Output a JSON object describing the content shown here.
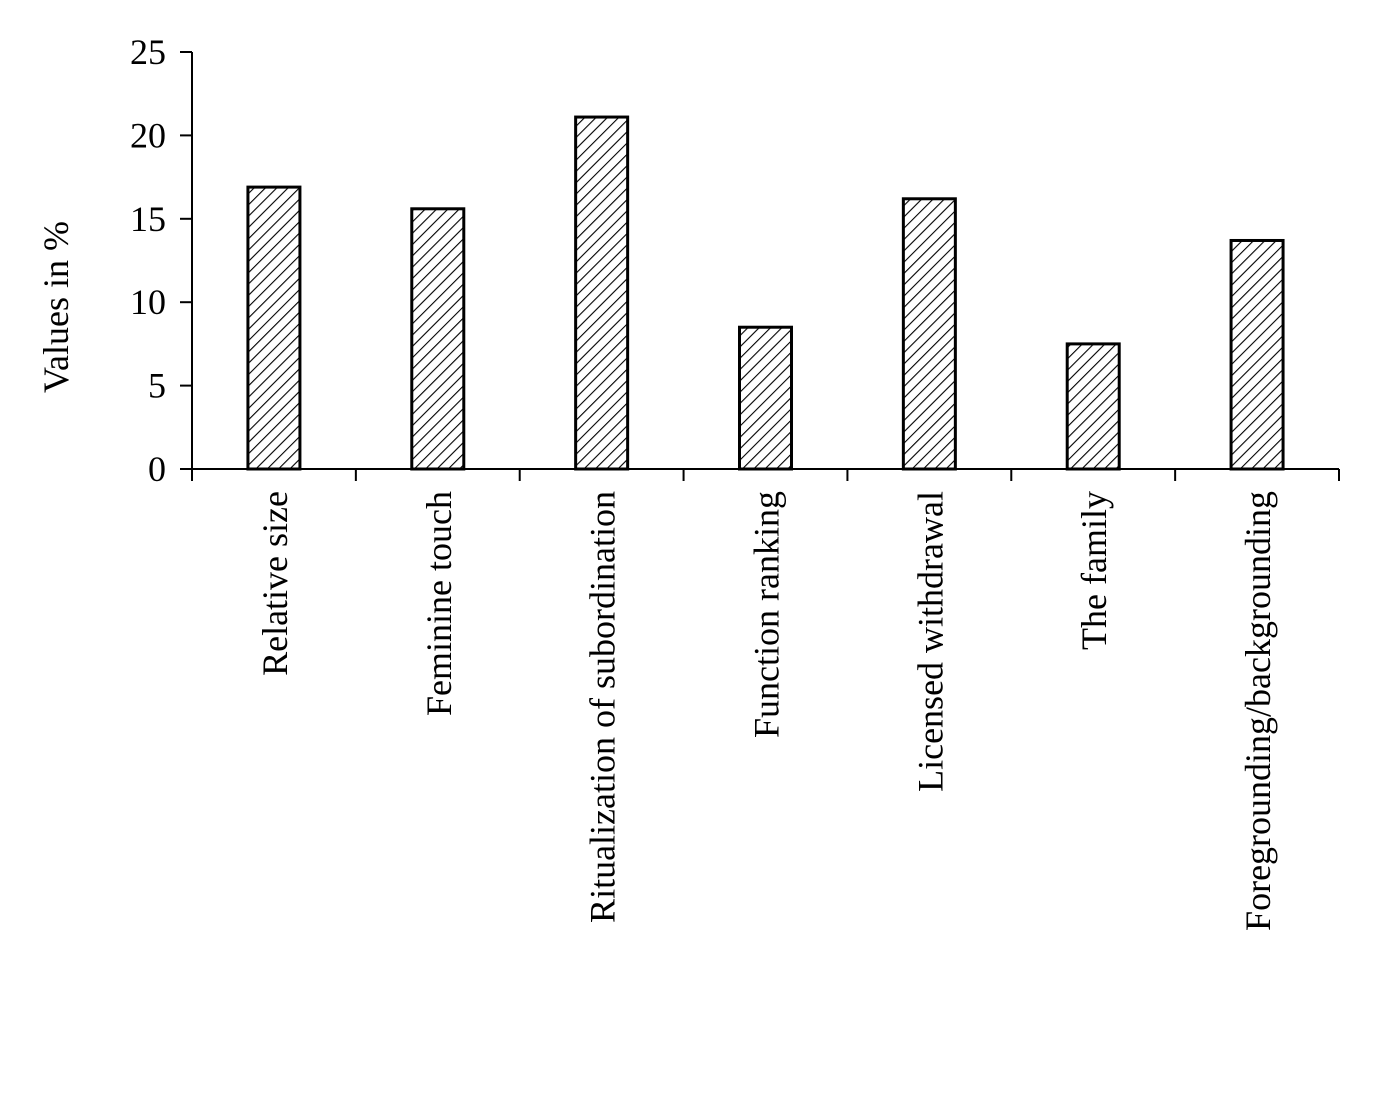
{
  "chart_data": {
    "type": "bar",
    "title": "",
    "xlabel": "",
    "ylabel": "Values in %",
    "categories": [
      "Relative size",
      "Feminine touch",
      "Ritualization of subordination",
      "Function ranking",
      "Licensed withdrawal",
      "The family",
      "Foregrounding/backgrounding"
    ],
    "values": [
      16.9,
      15.6,
      21.1,
      8.5,
      16.2,
      7.5,
      13.7
    ],
    "ylim": [
      0,
      25
    ],
    "yticks": [
      "0",
      "5",
      "10",
      "15",
      "20",
      "25"
    ],
    "grid": false,
    "legend": "none",
    "bar_fill": "hatched",
    "colors": {
      "bar_stroke": "#000000",
      "hatch": "#000000",
      "background": "#ffffff"
    }
  }
}
